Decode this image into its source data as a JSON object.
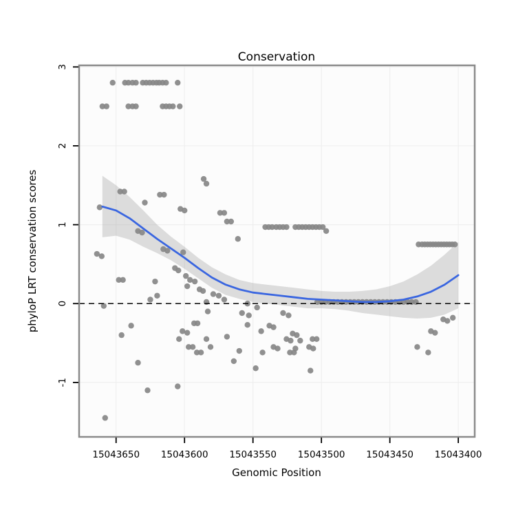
{
  "title": "Conservation",
  "xlabel": "Genomic Position",
  "ylabel": "phyloP LRT conservation scores",
  "colors": {
    "point": "#878787",
    "smooth_line": "#3A66E0",
    "ribbon": "#9A9A9A",
    "panel_border": "#8A8A8A",
    "grid": "#EFEFEF",
    "panel_bg": "#FCFCFC",
    "zero_line": "#000000",
    "tick": "#000000"
  },
  "chart_data": {
    "type": "scatter",
    "title": "Conservation",
    "xlabel": "Genomic Position",
    "ylabel": "phyloP LRT conservation scores",
    "x_reversed": true,
    "grid": true,
    "legend": "none",
    "x_ticks": [
      15043650,
      15043600,
      15043550,
      15043500,
      15043450,
      15043400
    ],
    "y_ticks": [
      -1,
      0,
      1,
      2,
      3
    ],
    "xlim": [
      15043677,
      15043388
    ],
    "ylim": [
      -1.69,
      3.02
    ],
    "zero_line_y": 0,
    "points": [
      [
        15043652.5,
        2.8
      ],
      [
        15043643.5,
        2.8
      ],
      [
        15043641,
        2.8
      ],
      [
        15043638,
        2.8
      ],
      [
        15043635.5,
        2.8
      ],
      [
        15043630.5,
        2.8
      ],
      [
        15043628,
        2.8
      ],
      [
        15043625.5,
        2.8
      ],
      [
        15043623,
        2.8
      ],
      [
        15043620.5,
        2.8
      ],
      [
        15043618.5,
        2.8
      ],
      [
        15043616,
        2.8
      ],
      [
        15043613.5,
        2.8
      ],
      [
        15043605,
        2.8
      ],
      [
        15043660,
        2.5
      ],
      [
        15043657,
        2.5
      ],
      [
        15043641,
        2.5
      ],
      [
        15043638,
        2.5
      ],
      [
        15043635.5,
        2.5
      ],
      [
        15043616,
        2.5
      ],
      [
        15043613.5,
        2.5
      ],
      [
        15043611,
        2.5
      ],
      [
        15043608.5,
        2.5
      ],
      [
        15043603.5,
        2.5
      ],
      [
        15043586,
        1.58
      ],
      [
        15043584,
        1.52
      ],
      [
        15043647,
        1.42
      ],
      [
        15043644,
        1.42
      ],
      [
        15043618,
        1.38
      ],
      [
        15043615,
        1.38
      ],
      [
        15043629,
        1.28
      ],
      [
        15043662,
        1.22
      ],
      [
        15043603,
        1.2
      ],
      [
        15043600,
        1.18
      ],
      [
        15043574,
        1.15
      ],
      [
        15043571,
        1.15
      ],
      [
        15043569,
        1.04
      ],
      [
        15043566,
        1.04
      ],
      [
        15043634,
        0.92
      ],
      [
        15043631,
        0.9
      ],
      [
        15043561,
        0.82
      ],
      [
        15043541,
        0.97
      ],
      [
        15043538.5,
        0.97
      ],
      [
        15043536,
        0.97
      ],
      [
        15043533,
        0.97
      ],
      [
        15043530.5,
        0.97
      ],
      [
        15043528,
        0.97
      ],
      [
        15043525.5,
        0.97
      ],
      [
        15043519,
        0.97
      ],
      [
        15043516.5,
        0.97
      ],
      [
        15043514,
        0.97
      ],
      [
        15043511.5,
        0.97
      ],
      [
        15043509,
        0.97
      ],
      [
        15043506.5,
        0.97
      ],
      [
        15043504,
        0.97
      ],
      [
        15043501.5,
        0.97
      ],
      [
        15043499,
        0.97
      ],
      [
        15043496.5,
        0.92
      ],
      [
        15043429,
        0.75
      ],
      [
        15043426.5,
        0.75
      ],
      [
        15043424.5,
        0.75
      ],
      [
        15043422.5,
        0.75
      ],
      [
        15043420.5,
        0.75
      ],
      [
        15043418.5,
        0.75
      ],
      [
        15043416.5,
        0.75
      ],
      [
        15043414.5,
        0.75
      ],
      [
        15043412.5,
        0.75
      ],
      [
        15043410.5,
        0.75
      ],
      [
        15043408.5,
        0.75
      ],
      [
        15043406.5,
        0.75
      ],
      [
        15043404.5,
        0.75
      ],
      [
        15043402.5,
        0.75
      ],
      [
        15043664,
        0.63
      ],
      [
        15043660.5,
        0.6
      ],
      [
        15043615.5,
        0.69
      ],
      [
        15043612.5,
        0.67
      ],
      [
        15043601,
        0.65
      ],
      [
        15043607,
        0.45
      ],
      [
        15043604.5,
        0.42
      ],
      [
        15043599,
        0.35
      ],
      [
        15043596,
        0.3
      ],
      [
        15043592.5,
        0.28
      ],
      [
        15043648,
        0.3
      ],
      [
        15043645,
        0.3
      ],
      [
        15043621.5,
        0.28
      ],
      [
        15043598,
        0.22
      ],
      [
        15043589,
        0.18
      ],
      [
        15043586.5,
        0.16
      ],
      [
        15043579,
        0.12
      ],
      [
        15043575,
        0.1
      ],
      [
        15043659,
        -0.03
      ],
      [
        15043625,
        0.05
      ],
      [
        15043620,
        0.1
      ],
      [
        15043584,
        0.02
      ],
      [
        15043571,
        0.05
      ],
      [
        15043554,
        0
      ],
      [
        15043547,
        -0.05
      ],
      [
        15043503,
        0.02
      ],
      [
        15043500,
        0.02
      ],
      [
        15043497,
        0.02
      ],
      [
        15043494,
        0.02
      ],
      [
        15043491,
        0.02
      ],
      [
        15043488,
        0.02
      ],
      [
        15043485,
        0.02
      ],
      [
        15043482,
        0.02
      ],
      [
        15043479,
        0.02
      ],
      [
        15043476,
        0.02
      ],
      [
        15043473,
        0.02
      ],
      [
        15043470,
        0.02
      ],
      [
        15043467,
        0.02
      ],
      [
        15043464,
        0.02
      ],
      [
        15043461,
        0.02
      ],
      [
        15043458,
        0.02
      ],
      [
        15043455,
        0.02
      ],
      [
        15043452,
        0.02
      ],
      [
        15043449,
        0.02
      ],
      [
        15043446,
        0.02
      ],
      [
        15043443,
        0.02
      ],
      [
        15043440,
        0.02
      ],
      [
        15043437,
        0.02
      ],
      [
        15043434,
        0.02
      ],
      [
        15043431,
        0.02
      ],
      [
        15043583,
        -0.1
      ],
      [
        15043558,
        -0.12
      ],
      [
        15043553,
        -0.15
      ],
      [
        15043528,
        -0.12
      ],
      [
        15043524,
        -0.15
      ],
      [
        15043593,
        -0.25
      ],
      [
        15043590.5,
        -0.25
      ],
      [
        15043554,
        -0.27
      ],
      [
        15043538,
        -0.28
      ],
      [
        15043535,
        -0.3
      ],
      [
        15043601.5,
        -0.35
      ],
      [
        15043598,
        -0.37
      ],
      [
        15043544,
        -0.35
      ],
      [
        15043521,
        -0.38
      ],
      [
        15043518,
        -0.4
      ],
      [
        15043604,
        -0.45
      ],
      [
        15043584,
        -0.45
      ],
      [
        15043569,
        -0.42
      ],
      [
        15043525.5,
        -0.45
      ],
      [
        15043522.5,
        -0.47
      ],
      [
        15043515.5,
        -0.47
      ],
      [
        15043506.5,
        -0.45
      ],
      [
        15043503.5,
        -0.45
      ],
      [
        15043597,
        -0.55
      ],
      [
        15043594,
        -0.55
      ],
      [
        15043581,
        -0.55
      ],
      [
        15043535,
        -0.55
      ],
      [
        15043532,
        -0.57
      ],
      [
        15043519,
        -0.57
      ],
      [
        15043509,
        -0.55
      ],
      [
        15043506,
        -0.57
      ],
      [
        15043591,
        -0.62
      ],
      [
        15043588,
        -0.62
      ],
      [
        15043560,
        -0.6
      ],
      [
        15043543,
        -0.62
      ],
      [
        15043523,
        -0.62
      ],
      [
        15043520,
        -0.62
      ],
      [
        15043634,
        -0.75
      ],
      [
        15043564,
        -0.73
      ],
      [
        15043548,
        -0.82
      ],
      [
        15043508,
        -0.85
      ],
      [
        15043605,
        -1.05
      ],
      [
        15043627,
        -1.1
      ],
      [
        15043420,
        -0.35
      ],
      [
        15043417,
        -0.37
      ],
      [
        15043411,
        -0.2
      ],
      [
        15043408,
        -0.22
      ],
      [
        15043404,
        -0.18
      ],
      [
        15043422,
        -0.62
      ],
      [
        15043430,
        -0.55
      ],
      [
        15043658,
        -1.45
      ],
      [
        15043646,
        -0.4
      ],
      [
        15043639,
        -0.28
      ]
    ],
    "smooth": {
      "x": [
        15043660,
        15043650,
        15043640,
        15043630,
        15043620,
        15043610,
        15043600,
        15043590,
        15043580,
        15043570,
        15043560,
        15043550,
        15043540,
        15043530,
        15043520,
        15043510,
        15043500,
        15043490,
        15043480,
        15043470,
        15043460,
        15043450,
        15043440,
        15043430,
        15043420,
        15043410,
        15043400
      ],
      "y": [
        1.23,
        1.18,
        1.08,
        0.95,
        0.82,
        0.7,
        0.58,
        0.45,
        0.33,
        0.24,
        0.18,
        0.14,
        0.12,
        0.1,
        0.08,
        0.06,
        0.05,
        0.04,
        0.03,
        0.02,
        0.02,
        0.03,
        0.05,
        0.09,
        0.15,
        0.24,
        0.36
      ],
      "upper": [
        1.62,
        1.5,
        1.35,
        1.18,
        1.0,
        0.85,
        0.72,
        0.58,
        0.46,
        0.37,
        0.3,
        0.26,
        0.24,
        0.22,
        0.2,
        0.18,
        0.16,
        0.15,
        0.15,
        0.16,
        0.18,
        0.22,
        0.28,
        0.37,
        0.48,
        0.62,
        0.78
      ],
      "lower": [
        0.84,
        0.86,
        0.81,
        0.72,
        0.64,
        0.55,
        0.44,
        0.32,
        0.2,
        0.11,
        0.06,
        0.02,
        0,
        -0.02,
        -0.04,
        -0.06,
        -0.06,
        -0.07,
        -0.09,
        -0.12,
        -0.14,
        -0.16,
        -0.18,
        -0.19,
        -0.18,
        -0.14,
        -0.06
      ]
    }
  }
}
